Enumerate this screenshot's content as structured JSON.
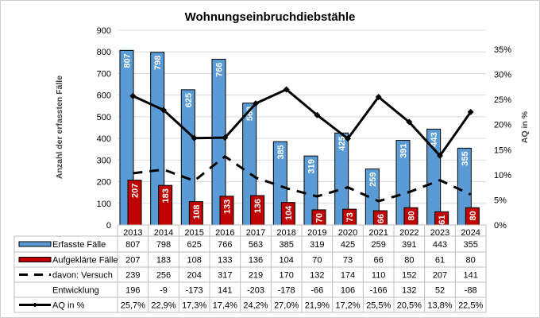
{
  "chart_data": {
    "type": "bar",
    "title": "Wohnungseinbruchdiebstähle",
    "ylabel": "Anzahl der erfassten Fälle",
    "y2label": "AQ in %",
    "ylim": [
      0,
      900
    ],
    "yticks": [
      0,
      100,
      200,
      300,
      400,
      500,
      600,
      700,
      800,
      900
    ],
    "y2lim": [
      0,
      35
    ],
    "y2ticks": [
      "0%",
      "5%",
      "10%",
      "15%",
      "20%",
      "25%",
      "30%",
      "35%"
    ],
    "grid": true,
    "legend": "data-table",
    "categories": [
      "2013",
      "2014",
      "2015",
      "2016",
      "2017",
      "2018",
      "2019",
      "2020",
      "2021",
      "2022",
      "2023",
      "2024"
    ],
    "series": [
      {
        "name": "Erfasste Fälle",
        "type": "bar",
        "axis": "left",
        "color": "#5b9bd5",
        "labels": [
          "807",
          "798",
          "625",
          "766",
          "563",
          "385",
          "319",
          "425",
          "259",
          "391",
          "443",
          "355"
        ],
        "values": [
          807,
          798,
          625,
          766,
          563,
          385,
          319,
          425,
          259,
          391,
          443,
          355
        ]
      },
      {
        "name": "Aufgeklärte Fälle",
        "type": "bar",
        "axis": "left",
        "color": "#c00000",
        "labels": [
          "207",
          "183",
          "108",
          "133",
          "136",
          "104",
          "70",
          "73",
          "66",
          "80",
          "61",
          "80"
        ],
        "values": [
          207,
          183,
          108,
          133,
          136,
          104,
          70,
          73,
          66,
          80,
          61,
          80
        ]
      },
      {
        "name": "davon: Versuch",
        "type": "line-dashed",
        "axis": "left",
        "color": "#000000",
        "labels": [
          "239",
          "256",
          "204",
          "317",
          "219",
          "170",
          "132",
          "174",
          "110",
          "152",
          "207",
          "141"
        ],
        "values": [
          239,
          256,
          204,
          317,
          219,
          170,
          132,
          174,
          110,
          152,
          207,
          141
        ]
      },
      {
        "name": "Entwicklung",
        "type": "table-only",
        "labels": [
          "196",
          "-9",
          "-173",
          "141",
          "-203",
          "-178",
          "-66",
          "106",
          "-166",
          "132",
          "52",
          "-88"
        ],
        "values": [
          196,
          -9,
          -173,
          141,
          -203,
          -178,
          -66,
          106,
          -166,
          132,
          52,
          -88
        ]
      },
      {
        "name": "AQ in %",
        "type": "line",
        "axis": "right",
        "color": "#000000",
        "labels": [
          "25,7%",
          "22,9%",
          "17,3%",
          "17,4%",
          "24,2%",
          "27,0%",
          "21,9%",
          "17,2%",
          "25,5%",
          "20,5%",
          "13,8%",
          "22,5%"
        ],
        "values": [
          25.7,
          22.9,
          17.3,
          17.4,
          24.2,
          27.0,
          21.9,
          17.2,
          25.5,
          20.5,
          13.8,
          22.5
        ]
      }
    ]
  }
}
